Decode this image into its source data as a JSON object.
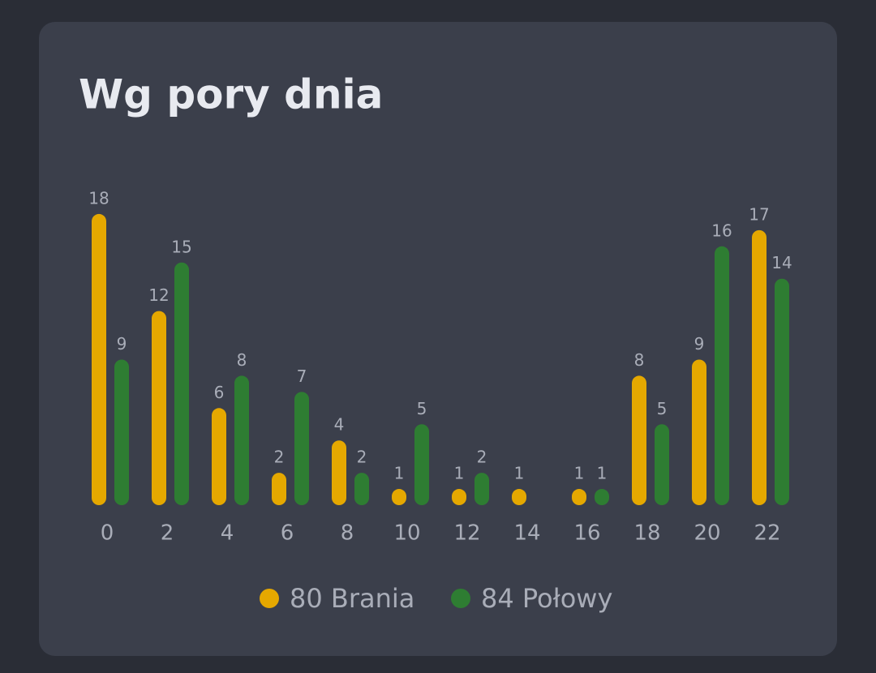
{
  "chart_data": {
    "type": "bar",
    "title": "Wg pory dnia",
    "categories": [
      "0",
      "2",
      "4",
      "6",
      "8",
      "10",
      "12",
      "14",
      "16",
      "18",
      "20",
      "22"
    ],
    "series": [
      {
        "name": "80 Brania",
        "color": "#e5a800",
        "values": [
          18,
          12,
          6,
          2,
          4,
          1,
          1,
          1,
          1,
          8,
          9,
          17
        ]
      },
      {
        "name": "84 Połowy",
        "color": "#2e7d32",
        "values": [
          9,
          15,
          8,
          7,
          2,
          5,
          2,
          null,
          1,
          5,
          16,
          14
        ]
      }
    ],
    "legend": "bottom"
  }
}
